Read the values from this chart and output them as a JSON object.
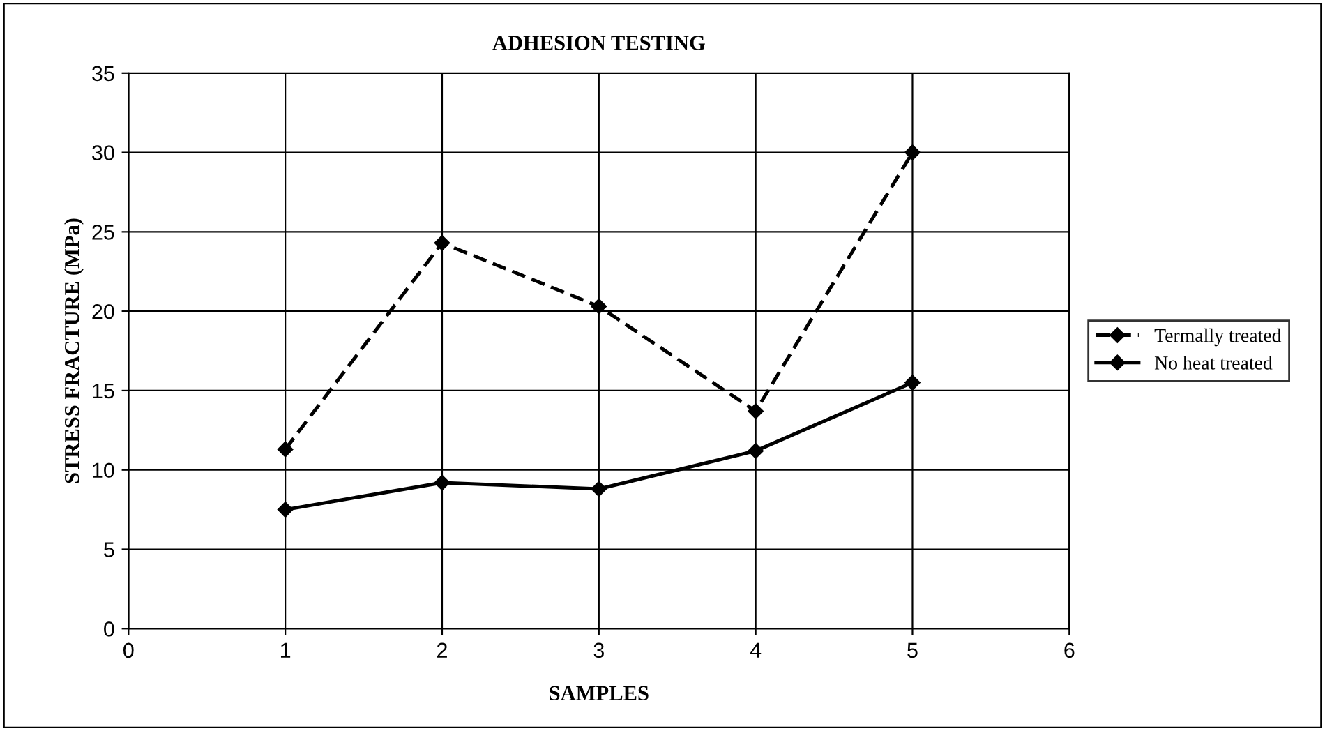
{
  "chart_data": {
    "type": "line",
    "title": "ADHESION TESTING",
    "xlabel": "SAMPLES",
    "ylabel": "STRESS FRACTURE (MPa)",
    "x": [
      1,
      2,
      3,
      4,
      5
    ],
    "series": [
      {
        "name": "Termally treated",
        "color": "#000000",
        "values": [
          11.3,
          24.3,
          20.3,
          13.7,
          30.0
        ],
        "line_style": "dashed"
      },
      {
        "name": "No heat treated",
        "color": "#000000",
        "values": [
          7.5,
          9.2,
          8.8,
          11.2,
          15.5
        ],
        "line_style": "solid"
      }
    ],
    "xlim": [
      0,
      6
    ],
    "xticks": [
      0,
      1,
      2,
      3,
      4,
      5,
      6
    ],
    "ylim": [
      0,
      35
    ],
    "yticks": [
      0,
      5,
      10,
      15,
      20,
      25,
      30,
      35
    ],
    "grid": true,
    "legend": "right",
    "marker": "diamond"
  }
}
